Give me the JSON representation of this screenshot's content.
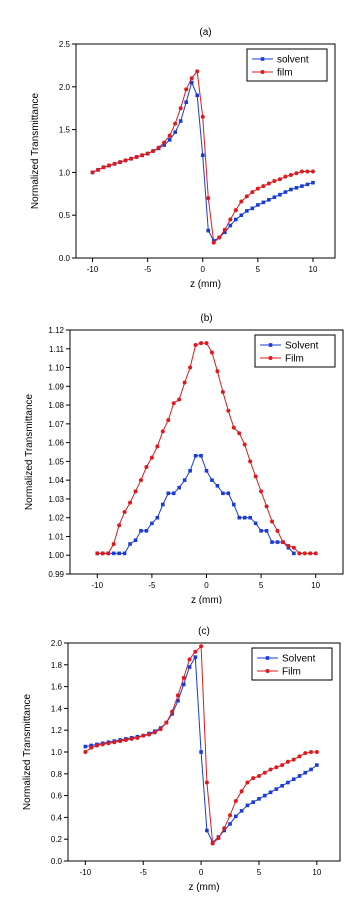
{
  "colors": {
    "solvent": "#1a3cd6",
    "film": "#e0191c"
  },
  "chart_data": [
    {
      "type": "line",
      "panel_label": "(a)",
      "xlabel": "z (mm)",
      "ylabel": "Normalized Transmittance",
      "xlim": [
        -11.5,
        12
      ],
      "ylim": [
        0.0,
        2.5
      ],
      "xticks": [
        -10,
        -5,
        0,
        5,
        10
      ],
      "xtick_labels": [
        "-10",
        "-5",
        "0",
        "5",
        "10"
      ],
      "yticks": [
        0.0,
        0.5,
        1.0,
        1.5,
        2.0,
        2.5
      ],
      "ytick_labels": [
        "0.0",
        "0.5",
        "1.0",
        "1.5",
        "2.0",
        "2.5"
      ],
      "grid": false,
      "legend_position": "top-right",
      "series": [
        {
          "name": "solvent",
          "marker": "square",
          "x": [
            -10,
            -9.5,
            -9,
            -8.5,
            -8,
            -7.5,
            -7,
            -6.5,
            -6,
            -5.5,
            -5,
            -4.5,
            -4,
            -3.5,
            -3,
            -2.5,
            -2,
            -1.5,
            -1,
            -0.5,
            0,
            0.5,
            1,
            1.5,
            2,
            2.5,
            3,
            3.5,
            4,
            4.5,
            5,
            5.5,
            6,
            6.5,
            7,
            7.5,
            8,
            8.5,
            9,
            9.5,
            10
          ],
          "y": [
            1.0,
            1.03,
            1.06,
            1.08,
            1.1,
            1.12,
            1.14,
            1.16,
            1.18,
            1.2,
            1.22,
            1.25,
            1.28,
            1.32,
            1.38,
            1.47,
            1.6,
            1.82,
            2.05,
            1.9,
            1.2,
            0.32,
            0.2,
            0.24,
            0.3,
            0.38,
            0.45,
            0.5,
            0.55,
            0.58,
            0.62,
            0.65,
            0.68,
            0.71,
            0.74,
            0.77,
            0.8,
            0.82,
            0.84,
            0.86,
            0.88
          ]
        },
        {
          "name": "film",
          "marker": "circle",
          "x": [
            -10,
            -9.5,
            -9,
            -8.5,
            -8,
            -7.5,
            -7,
            -6.5,
            -6,
            -5.5,
            -5,
            -4.5,
            -4,
            -3.5,
            -3,
            -2.5,
            -2,
            -1.5,
            -1,
            -0.5,
            0,
            0.5,
            1,
            1.5,
            2,
            2.5,
            3,
            3.5,
            4,
            4.5,
            5,
            5.5,
            6,
            6.5,
            7,
            7.5,
            8,
            8.5,
            9,
            9.5,
            10
          ],
          "y": [
            1.0,
            1.03,
            1.06,
            1.08,
            1.1,
            1.12,
            1.14,
            1.16,
            1.18,
            1.2,
            1.22,
            1.25,
            1.29,
            1.35,
            1.43,
            1.57,
            1.75,
            1.97,
            2.1,
            2.18,
            1.65,
            0.7,
            0.18,
            0.24,
            0.33,
            0.45,
            0.56,
            0.66,
            0.72,
            0.77,
            0.81,
            0.84,
            0.87,
            0.9,
            0.92,
            0.95,
            0.97,
            0.99,
            1.01,
            1.01,
            1.01
          ]
        }
      ]
    },
    {
      "type": "line",
      "panel_label": "(b)",
      "xlabel": "z (mm)",
      "ylabel": "Normalized Transmittance",
      "xlim": [
        -12.5,
        12.5
      ],
      "ylim": [
        0.99,
        1.12
      ],
      "xticks": [
        -10,
        -5,
        0,
        5,
        10
      ],
      "xtick_labels": [
        "-10",
        "-5",
        "0",
        "5",
        "10"
      ],
      "yticks": [
        0.99,
        1.0,
        1.01,
        1.02,
        1.03,
        1.04,
        1.05,
        1.06,
        1.07,
        1.08,
        1.09,
        1.1,
        1.11,
        1.12
      ],
      "ytick_labels": [
        "0.99",
        "1.00",
        "1.01",
        "1.02",
        "1.03",
        "1.04",
        "1.05",
        "1.06",
        "1.07",
        "1.08",
        "1.09",
        "1.10",
        "1.11",
        "1.12"
      ],
      "grid": false,
      "legend_position": "top-right",
      "series": [
        {
          "name": "Solvent",
          "marker": "square",
          "x": [
            -10,
            -9.5,
            -9,
            -8.5,
            -8,
            -7.5,
            -7,
            -6.5,
            -6,
            -5.5,
            -5,
            -4.5,
            -4,
            -3.5,
            -3,
            -2.5,
            -2,
            -1.5,
            -1,
            -0.5,
            0,
            0.5,
            1,
            1.5,
            2,
            2.5,
            3,
            3.5,
            4,
            4.5,
            5,
            5.5,
            6,
            6.5,
            7,
            7.5,
            8
          ],
          "y": [
            1.001,
            1.001,
            1.001,
            1.001,
            1.001,
            1.001,
            1.006,
            1.008,
            1.013,
            1.013,
            1.017,
            1.02,
            1.027,
            1.033,
            1.033,
            1.036,
            1.04,
            1.045,
            1.053,
            1.053,
            1.045,
            1.04,
            1.037,
            1.033,
            1.033,
            1.027,
            1.02,
            1.02,
            1.02,
            1.017,
            1.013,
            1.013,
            1.007,
            1.007,
            1.007,
            1.004,
            1.001
          ]
        },
        {
          "name": "Film",
          "marker": "circle",
          "x": [
            -10,
            -9.5,
            -9,
            -8.5,
            -8,
            -7.5,
            -7,
            -6.5,
            -6,
            -5.5,
            -5,
            -4.5,
            -4,
            -3.5,
            -3,
            -2.5,
            -2,
            -1.5,
            -1,
            -0.5,
            0,
            0.5,
            1,
            1.5,
            2,
            2.5,
            3,
            3.5,
            4,
            4.5,
            5,
            5.5,
            6,
            6.5,
            7,
            7.5,
            8,
            8.5,
            9,
            9.5,
            10
          ],
          "y": [
            1.001,
            1.001,
            1.001,
            1.006,
            1.016,
            1.023,
            1.028,
            1.034,
            1.04,
            1.047,
            1.052,
            1.058,
            1.066,
            1.072,
            1.081,
            1.083,
            1.092,
            1.1,
            1.112,
            1.113,
            1.113,
            1.108,
            1.098,
            1.087,
            1.077,
            1.068,
            1.065,
            1.059,
            1.05,
            1.042,
            1.034,
            1.026,
            1.018,
            1.013,
            1.007,
            1.005,
            1.004,
            1.001,
            1.001,
            1.001,
            1.001
          ]
        }
      ]
    },
    {
      "type": "line",
      "panel_label": "(c)",
      "xlabel": "z (mm)",
      "ylabel": "Normalized Transmittance",
      "xlim": [
        -11.5,
        12
      ],
      "ylim": [
        0.0,
        2.0
      ],
      "xticks": [
        -10,
        -5,
        0,
        5,
        10
      ],
      "xtick_labels": [
        "-10",
        "-5",
        "0",
        "5",
        "10"
      ],
      "yticks": [
        0.0,
        0.2,
        0.4,
        0.6,
        0.8,
        1.0,
        1.2,
        1.4,
        1.6,
        1.8,
        2.0
      ],
      "ytick_labels": [
        "0.0",
        "0.2",
        "0.4",
        "0.6",
        "0.8",
        "1.0",
        "1.2",
        "1.4",
        "1.6",
        "1.8",
        "2.0"
      ],
      "grid": false,
      "legend_position": "top-right",
      "series": [
        {
          "name": "Solvent",
          "marker": "square",
          "x": [
            -10,
            -9.5,
            -9,
            -8.5,
            -8,
            -7.5,
            -7,
            -6.5,
            -6,
            -5.5,
            -5,
            -4.5,
            -4,
            -3.5,
            -3,
            -2.5,
            -2,
            -1.5,
            -1,
            -0.5,
            0,
            0.5,
            1,
            1.5,
            2,
            2.5,
            3,
            3.5,
            4,
            4.5,
            5,
            5.5,
            6,
            6.5,
            7,
            7.5,
            8,
            8.5,
            9,
            9.5,
            10
          ],
          "y": [
            1.05,
            1.06,
            1.07,
            1.08,
            1.09,
            1.1,
            1.11,
            1.12,
            1.13,
            1.14,
            1.15,
            1.17,
            1.19,
            1.22,
            1.27,
            1.35,
            1.47,
            1.62,
            1.78,
            1.87,
            1.0,
            0.28,
            0.17,
            0.22,
            0.28,
            0.34,
            0.41,
            0.46,
            0.51,
            0.54,
            0.57,
            0.6,
            0.63,
            0.66,
            0.69,
            0.72,
            0.75,
            0.78,
            0.81,
            0.84,
            0.88
          ]
        },
        {
          "name": "Film",
          "marker": "circle",
          "x": [
            -10,
            -9.5,
            -9,
            -8.5,
            -8,
            -7.5,
            -7,
            -6.5,
            -6,
            -5.5,
            -5,
            -4.5,
            -4,
            -3.5,
            -3,
            -2.5,
            -2,
            -1.5,
            -1,
            -0.5,
            0,
            0.5,
            1,
            1.5,
            2,
            2.5,
            3,
            3.5,
            4,
            4.5,
            5,
            5.5,
            6,
            6.5,
            7,
            7.5,
            8,
            8.5,
            9,
            9.5,
            10
          ],
          "y": [
            1.0,
            1.04,
            1.06,
            1.07,
            1.08,
            1.09,
            1.1,
            1.11,
            1.12,
            1.13,
            1.15,
            1.16,
            1.18,
            1.21,
            1.27,
            1.37,
            1.52,
            1.68,
            1.85,
            1.92,
            1.97,
            0.72,
            0.16,
            0.21,
            0.3,
            0.42,
            0.55,
            0.64,
            0.72,
            0.76,
            0.78,
            0.81,
            0.84,
            0.86,
            0.88,
            0.91,
            0.93,
            0.96,
            0.99,
            1.0,
            1.0
          ]
        }
      ]
    }
  ]
}
